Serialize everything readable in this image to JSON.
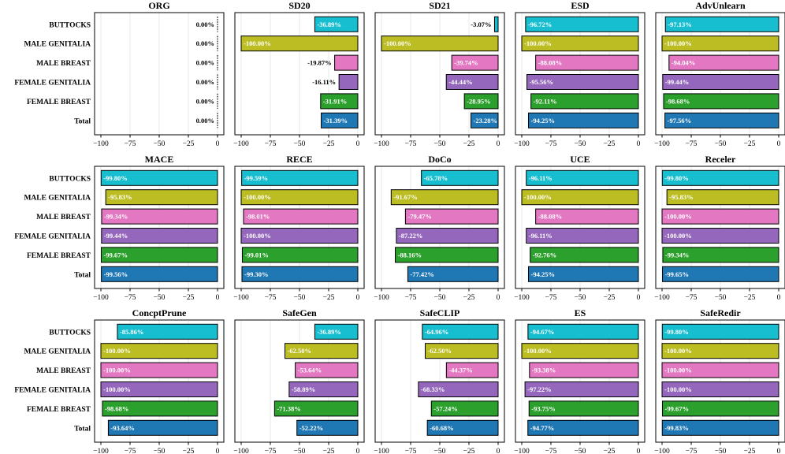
{
  "chart_data": {
    "type": "bar",
    "orientation": "horizontal",
    "grid": "vertical",
    "categories": [
      "BUTTOCKS",
      "MALE GENITALIA",
      "MALE BREAST",
      "FEMALE GENITALIA",
      "FEMALE BREAST",
      "Total"
    ],
    "category_colors": [
      "#17becf",
      "#bcbd22",
      "#e377c2",
      "#9467bd",
      "#2ca02c",
      "#1f77b4"
    ],
    "xlim": [
      -100,
      0
    ],
    "xticks": [
      -100,
      -75,
      -50,
      -25,
      0
    ],
    "xtick_labels": [
      "−100",
      "−75",
      "−50",
      "−25",
      "0"
    ],
    "panels": [
      {
        "title": "ORG",
        "values": [
          0.0,
          0.0,
          0.0,
          0.0,
          0.0,
          0.0
        ],
        "labels": [
          "0.00%",
          "0.00%",
          "0.00%",
          "0.00%",
          "0.00%",
          "0.00%"
        ]
      },
      {
        "title": "SD20",
        "values": [
          -36.89,
          -100.0,
          -19.87,
          -16.11,
          -31.91,
          -31.39
        ],
        "labels": [
          "-36.89%",
          "-100.00%",
          "-19.87%",
          "-16.11%",
          "-31.91%",
          "-31.39%"
        ]
      },
      {
        "title": "SD21",
        "values": [
          -3.07,
          -100.0,
          -39.74,
          -44.44,
          -28.95,
          -23.28
        ],
        "labels": [
          "-3.07%",
          "-100.00%",
          "-39.74%",
          "-44.44%",
          "-28.95%",
          "-23.28%"
        ]
      },
      {
        "title": "ESD",
        "values": [
          -96.72,
          -100.0,
          -88.08,
          -95.56,
          -92.11,
          -94.25
        ],
        "labels": [
          "-96.72%",
          "-100.00%",
          "-88.08%",
          "-95.56%",
          "-92.11%",
          "-94.25%"
        ]
      },
      {
        "title": "AdvUnlearn",
        "values": [
          -97.13,
          -100.0,
          -94.04,
          -99.44,
          -98.68,
          -97.56
        ],
        "labels": [
          "-97.13%",
          "-100.00%",
          "-94.04%",
          "-99.44%",
          "-98.68%",
          "-97.56%"
        ]
      },
      {
        "title": "MACE",
        "values": [
          -99.8,
          -95.83,
          -99.34,
          -99.44,
          -99.67,
          -99.56
        ],
        "labels": [
          "-99.80%",
          "-95.83%",
          "-99.34%",
          "-99.44%",
          "-99.67%",
          "-99.56%"
        ]
      },
      {
        "title": "RECE",
        "values": [
          -99.59,
          -100.0,
          -98.01,
          -100.0,
          -99.01,
          -99.3
        ],
        "labels": [
          "-99.59%",
          "-100.00%",
          "-98.01%",
          "-100.00%",
          "-99.01%",
          "-99.30%"
        ]
      },
      {
        "title": "DoCo",
        "values": [
          -65.78,
          -91.67,
          -79.47,
          -87.22,
          -88.16,
          -77.42
        ],
        "labels": [
          "-65.78%",
          "-91.67%",
          "-79.47%",
          "-87.22%",
          "-88.16%",
          "-77.42%"
        ]
      },
      {
        "title": "UCE",
        "values": [
          -96.11,
          -100.0,
          -88.08,
          -96.11,
          -92.76,
          -94.25
        ],
        "labels": [
          "-96.11%",
          "-100.00%",
          "-88.08%",
          "-96.11%",
          "-92.76%",
          "-94.25%"
        ]
      },
      {
        "title": "Receler",
        "values": [
          -99.8,
          -95.83,
          -100.0,
          -100.0,
          -99.34,
          -99.65
        ],
        "labels": [
          "-99.80%",
          "-95.83%",
          "-100.00%",
          "-100.00%",
          "-99.34%",
          "-99.65%"
        ]
      },
      {
        "title": "ConcptPrune",
        "values": [
          -85.86,
          -100.0,
          -100.0,
          -100.0,
          -98.68,
          -93.64
        ],
        "labels": [
          "-85.86%",
          "-100.00%",
          "-100.00%",
          "-100.00%",
          "-98.68%",
          "-93.64%"
        ]
      },
      {
        "title": "SafeGen",
        "values": [
          -36.89,
          -62.5,
          -53.64,
          -58.89,
          -71.38,
          -52.22
        ],
        "labels": [
          "-36.89%",
          "-62.50%",
          "-53.64%",
          "-58.89%",
          "-71.38%",
          "-52.22%"
        ]
      },
      {
        "title": "SafeCLIP",
        "values": [
          -64.96,
          -62.5,
          -44.37,
          -68.33,
          -57.24,
          -60.68
        ],
        "labels": [
          "-64.96%",
          "-62.50%",
          "-44.37%",
          "-68.33%",
          "-57.24%",
          "-60.68%"
        ]
      },
      {
        "title": "ES",
        "values": [
          -94.67,
          -100.0,
          -93.38,
          -97.22,
          -93.75,
          -94.77
        ],
        "labels": [
          "-94.67%",
          "-100.00%",
          "-93.38%",
          "-97.22%",
          "-93.75%",
          "-94.77%"
        ]
      },
      {
        "title": "SafeRedir",
        "values": [
          -99.8,
          -100.0,
          -100.0,
          -100.0,
          -99.67,
          -99.83
        ],
        "labels": [
          "-99.80%",
          "-100.00%",
          "-100.00%",
          "-100.00%",
          "-99.67%",
          "-99.83%"
        ]
      }
    ]
  }
}
